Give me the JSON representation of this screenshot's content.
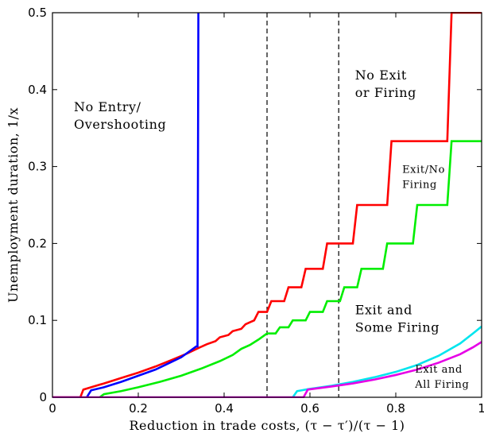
{
  "chart_data": {
    "type": "line",
    "title": "",
    "xlabel": "Reduction in trade costs, (τ − τ′)/(τ − 1)",
    "ylabel": "Unemployment duration, 1/x",
    "xlim": [
      0,
      1
    ],
    "ylim": [
      0,
      0.5
    ],
    "xticks": [
      "0",
      "0.2",
      "0.4",
      "0.6",
      "0.8",
      "1"
    ],
    "yticks": [
      "0",
      "0.1",
      "0.2",
      "0.3",
      "0.4",
      "0.5"
    ],
    "grid": false,
    "legend": "none",
    "reference_lines": [
      {
        "x": 0.5,
        "style": "dashed",
        "color": "#000000"
      },
      {
        "x": 0.667,
        "style": "dashed",
        "color": "#000000"
      }
    ],
    "series": [
      {
        "color": "#ff0000",
        "points": [
          [
            0,
            0
          ],
          [
            0.065,
            0
          ],
          [
            0.072,
            0.01
          ],
          [
            0.09,
            0.013
          ],
          [
            0.12,
            0.018
          ],
          [
            0.16,
            0.025
          ],
          [
            0.2,
            0.032
          ],
          [
            0.24,
            0.04
          ],
          [
            0.28,
            0.049
          ],
          [
            0.31,
            0.056
          ],
          [
            0.34,
            0.064
          ],
          [
            0.36,
            0.069
          ],
          [
            0.38,
            0.073
          ],
          [
            0.39,
            0.078
          ],
          [
            0.41,
            0.081
          ],
          [
            0.42,
            0.086
          ],
          [
            0.44,
            0.089
          ],
          [
            0.45,
            0.095
          ],
          [
            0.47,
            0.1
          ],
          [
            0.48,
            0.111
          ],
          [
            0.5,
            0.111
          ],
          [
            0.51,
            0.125
          ],
          [
            0.54,
            0.125
          ],
          [
            0.55,
            0.143
          ],
          [
            0.58,
            0.143
          ],
          [
            0.59,
            0.167
          ],
          [
            0.63,
            0.167
          ],
          [
            0.64,
            0.2
          ],
          [
            0.7,
            0.2
          ],
          [
            0.71,
            0.25
          ],
          [
            0.78,
            0.25
          ],
          [
            0.79,
            0.333
          ],
          [
            0.92,
            0.333
          ],
          [
            0.93,
            0.5
          ],
          [
            1.0,
            0.5
          ]
        ]
      },
      {
        "color": "#0000ff",
        "points": [
          [
            0.08,
            0
          ],
          [
            0.09,
            0.009
          ],
          [
            0.12,
            0.013
          ],
          [
            0.16,
            0.02
          ],
          [
            0.2,
            0.028
          ],
          [
            0.24,
            0.036
          ],
          [
            0.27,
            0.044
          ],
          [
            0.3,
            0.052
          ],
          [
            0.32,
            0.06
          ],
          [
            0.335,
            0.066
          ],
          [
            0.338,
            0.066
          ],
          [
            0.34,
            0.5
          ]
        ]
      },
      {
        "color": "#00ee00",
        "points": [
          [
            0.11,
            0
          ],
          [
            0.12,
            0.004
          ],
          [
            0.16,
            0.008
          ],
          [
            0.2,
            0.013
          ],
          [
            0.25,
            0.02
          ],
          [
            0.3,
            0.028
          ],
          [
            0.35,
            0.038
          ],
          [
            0.39,
            0.047
          ],
          [
            0.42,
            0.055
          ],
          [
            0.44,
            0.063
          ],
          [
            0.46,
            0.068
          ],
          [
            0.48,
            0.075
          ],
          [
            0.5,
            0.083
          ],
          [
            0.52,
            0.083
          ],
          [
            0.53,
            0.091
          ],
          [
            0.55,
            0.091
          ],
          [
            0.56,
            0.1
          ],
          [
            0.59,
            0.1
          ],
          [
            0.6,
            0.111
          ],
          [
            0.63,
            0.111
          ],
          [
            0.64,
            0.125
          ],
          [
            0.67,
            0.125
          ],
          [
            0.68,
            0.143
          ],
          [
            0.71,
            0.143
          ],
          [
            0.72,
            0.167
          ],
          [
            0.77,
            0.167
          ],
          [
            0.78,
            0.2
          ],
          [
            0.84,
            0.2
          ],
          [
            0.85,
            0.25
          ],
          [
            0.92,
            0.25
          ],
          [
            0.93,
            0.333
          ],
          [
            1.0,
            0.333
          ]
        ]
      },
      {
        "color": "#00e5ee",
        "points": [
          [
            0.56,
            0
          ],
          [
            0.57,
            0.008
          ],
          [
            0.6,
            0.011
          ],
          [
            0.65,
            0.015
          ],
          [
            0.7,
            0.02
          ],
          [
            0.75,
            0.026
          ],
          [
            0.8,
            0.033
          ],
          [
            0.85,
            0.042
          ],
          [
            0.9,
            0.054
          ],
          [
            0.95,
            0.07
          ],
          [
            0.98,
            0.083
          ],
          [
            1.0,
            0.092
          ]
        ]
      },
      {
        "color": "#e600e6",
        "points": [
          [
            0,
            0
          ],
          [
            0.585,
            0
          ],
          [
            0.595,
            0.01
          ],
          [
            0.65,
            0.014
          ],
          [
            0.7,
            0.018
          ],
          [
            0.75,
            0.023
          ],
          [
            0.8,
            0.029
          ],
          [
            0.85,
            0.036
          ],
          [
            0.9,
            0.045
          ],
          [
            0.95,
            0.056
          ],
          [
            0.98,
            0.065
          ],
          [
            1.0,
            0.072
          ]
        ]
      }
    ],
    "annotations": [
      {
        "lines": [
          "No Entry/",
          "Overshooting"
        ],
        "x": 0.05,
        "y": 0.372,
        "size": "large"
      },
      {
        "lines": [
          "No Exit",
          "or Firing"
        ],
        "x": 0.705,
        "y": 0.413,
        "size": "large"
      },
      {
        "lines": [
          "Exit/No",
          "Firing"
        ],
        "x": 0.815,
        "y": 0.292,
        "size": "small"
      },
      {
        "lines": [
          "Exit and",
          "Some Firing"
        ],
        "x": 0.705,
        "y": 0.108,
        "size": "large"
      },
      {
        "lines": [
          "Exit and",
          "All Firing"
        ],
        "x": 0.845,
        "y": 0.032,
        "size": "small"
      }
    ]
  }
}
